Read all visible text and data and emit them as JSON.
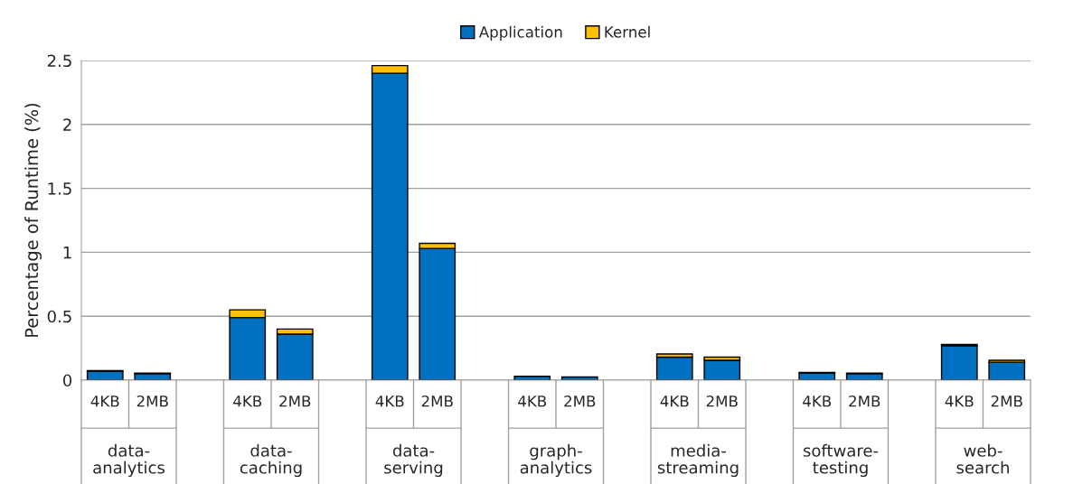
{
  "chart_data": {
    "type": "bar",
    "stacked": true,
    "ylabel": "Percentage of Runtime (%)",
    "categories": [
      "4KB",
      "2MB",
      null,
      "4KB",
      "2MB",
      null,
      "4KB",
      "2MB",
      null,
      "4KB",
      "2MB",
      null,
      "4KB",
      "2MB",
      null,
      "4KB",
      "2MB",
      null,
      "4KB",
      "2MB"
    ],
    "series": [
      {
        "name": "Application",
        "color": "#0070c0",
        "values": [
          0.07,
          0.05,
          null,
          0.49,
          0.36,
          null,
          2.4,
          1.03,
          null,
          0.03,
          0.025,
          null,
          0.18,
          0.155,
          null,
          0.055,
          0.05,
          null,
          0.27,
          0.14
        ]
      },
      {
        "name": "Kernel",
        "color": "#ffc000",
        "values": [
          0.005,
          0.005,
          null,
          0.06,
          0.04,
          null,
          0.06,
          0.04,
          null,
          null,
          null,
          null,
          0.025,
          0.025,
          null,
          0.005,
          0.005,
          null,
          0.01,
          0.015
        ]
      }
    ],
    "annotations": [
      "data-\nanalytics",
      "data-\ncaching",
      "data-\nserving",
      "graph-\nanalytics",
      "media-\nstreaming",
      "software-\ntesting",
      "web-\nsearch"
    ],
    "ylim": [
      0,
      2.5
    ],
    "yticks": [
      0,
      0.5,
      1,
      1.5,
      2,
      2.5
    ],
    "grid": "y",
    "legend": "top"
  }
}
